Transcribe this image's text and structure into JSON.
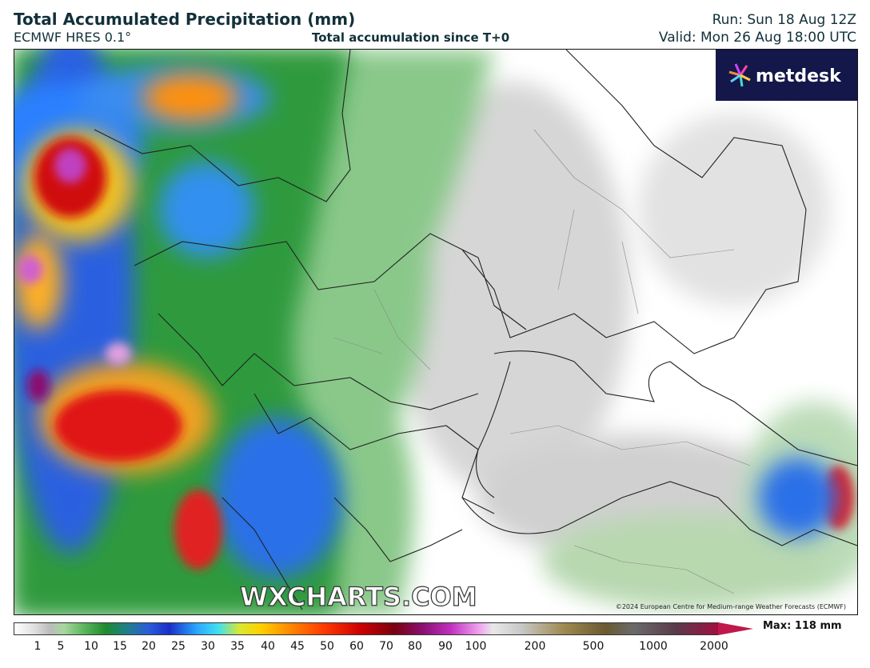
{
  "header": {
    "title": "Total Accumulated Precipitation (mm)",
    "model": "ECMWF HRES 0.1°",
    "subtitle": "Total accumulation since T+0",
    "run": "Run: Sun 18 Aug 12Z",
    "valid": "Valid: Mon 26 Aug 18:00 UTC"
  },
  "logo": "metdesk",
  "watermark": "WXCHARTS.COM",
  "copyright": "©2024 European Centre for Medium-range Weather Forecasts (ECMWF)",
  "colorbar": {
    "ticks": [
      1,
      5,
      10,
      15,
      20,
      25,
      30,
      35,
      40,
      45,
      50,
      60,
      70,
      80,
      90,
      100,
      200,
      500,
      1000,
      2000
    ],
    "max_label": "Max: 118 mm"
  }
}
